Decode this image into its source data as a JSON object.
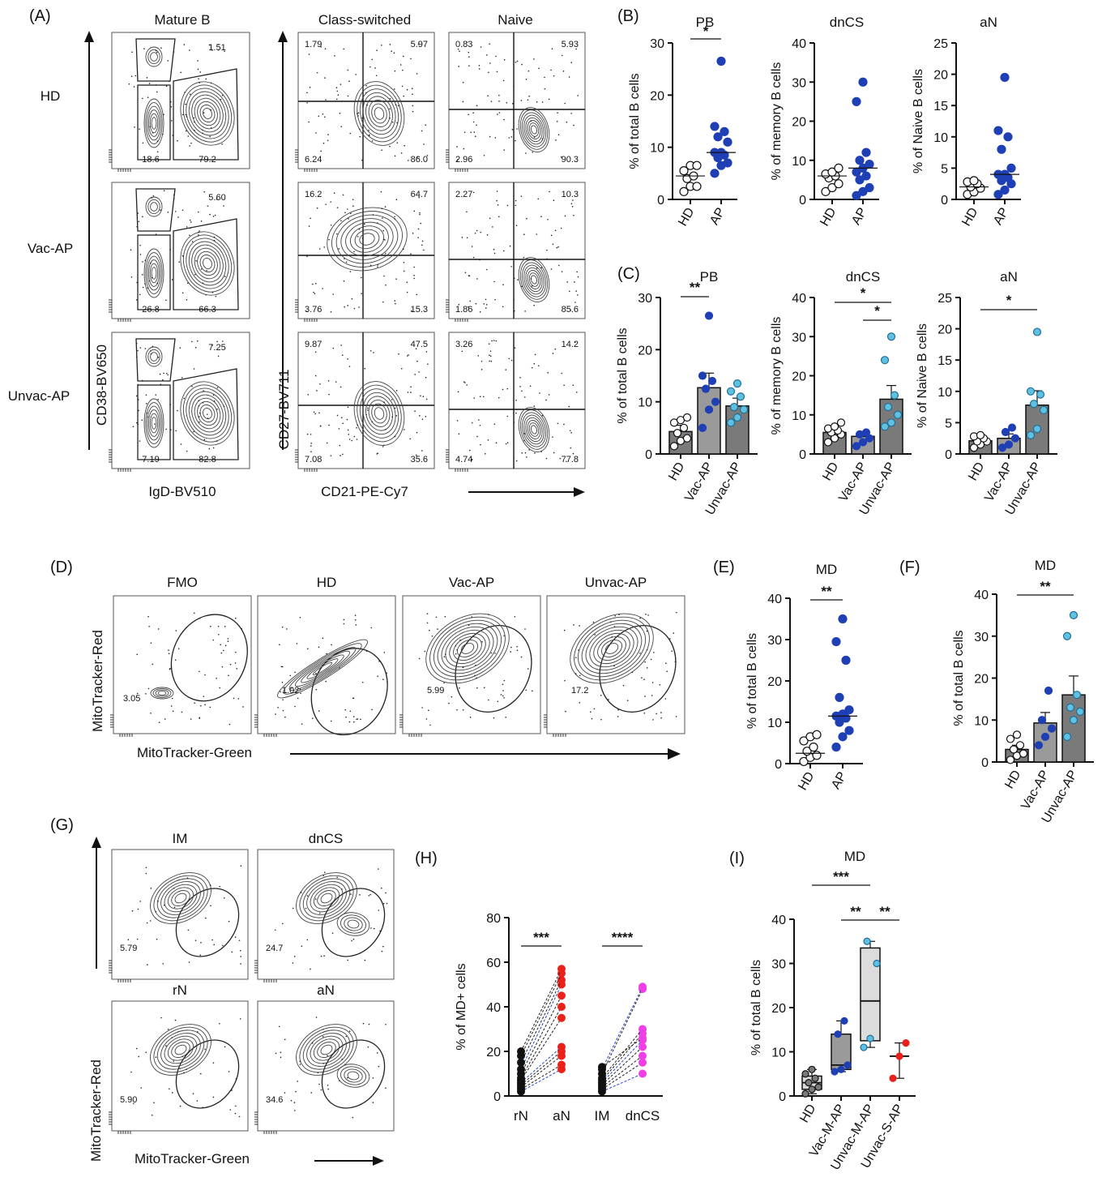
{
  "panel_labels": {
    "A": "(A)",
    "B": "(B)",
    "C": "(C)",
    "D": "(D)",
    "E": "(E)",
    "F": "(F)",
    "G": "(G)",
    "H": "(H)",
    "I": "(I)"
  },
  "panelA": {
    "col_titles": [
      "Mature B",
      "Class-switched",
      "Naive"
    ],
    "row_labels": [
      "HD",
      "Vac-AP",
      "Unvac-AP"
    ],
    "y_label_left": "CD38-BV650",
    "x_label_left": "IgD-BV510",
    "y_label_right": "CD27-BV711",
    "x_label_right": "CD21-PE-Cy7",
    "mature": [
      {
        "top": "1.51",
        "bl": "18.6",
        "br": "79.2"
      },
      {
        "top": "5.60",
        "bl": "26.8",
        "br": "66.3"
      },
      {
        "top": "7.25",
        "bl": "7.19",
        "br": "82.8"
      }
    ],
    "classsw": [
      {
        "tl": "1.79",
        "tr": "5.97",
        "bl": "6.24",
        "br": "86.0"
      },
      {
        "tl": "16.2",
        "tr": "64.7",
        "bl": "3.76",
        "br": "15.3"
      },
      {
        "tl": "9.87",
        "tr": "47.5",
        "bl": "7.08",
        "br": "35.6"
      }
    ],
    "naive": [
      {
        "tl": "0.83",
        "tr": "5.93",
        "bl": "2.96",
        "br": "90.3"
      },
      {
        "tl": "2.27",
        "tr": "10.3",
        "bl": "1.86",
        "br": "85.6"
      },
      {
        "tl": "3.26",
        "tr": "14.2",
        "bl": "4.74",
        "br": "77.8"
      }
    ]
  },
  "panelD": {
    "titles": [
      "FMO",
      "HD",
      "Vac-AP",
      "Unvac-AP"
    ],
    "values": [
      "3.05",
      "1.02",
      "5.99",
      "17.2"
    ],
    "y_label": "MitoTracker-Red",
    "x_label": "MitoTracker-Green"
  },
  "panelG": {
    "titles": [
      "IM",
      "dnCS",
      "rN",
      "aN"
    ],
    "values": [
      "5.79",
      "24.7",
      "5.90",
      "34.6"
    ],
    "y_label": "MitoTracker-Red",
    "x_label": "MitoTracker-Green"
  },
  "colors": {
    "hd_open": "#ffffff",
    "ap_blue": "#1f3fb5",
    "unvac_light": "#5fc0e0",
    "red": "#e8221b",
    "magenta": "#ef3fe6",
    "bar_fill": "#7a7a7a",
    "bar_light": "#c8c8c8",
    "black": "#111111"
  },
  "chart_data": [
    {
      "id": "B-PB",
      "type": "scatter",
      "title": "PB",
      "ylabel": "% of total B cells",
      "ylim": [
        0,
        30
      ],
      "yticks": [
        "0",
        "10",
        "20",
        "30"
      ],
      "categories": [
        "HD",
        "AP"
      ],
      "series": [
        {
          "values": [
            1.5,
            2.5,
            2.5,
            4,
            4.5,
            5.5,
            6.5,
            6.5
          ]
        },
        {
          "values": [
            5,
            6.5,
            7,
            8,
            8.5,
            9,
            9,
            11,
            12,
            13,
            14,
            26.5
          ]
        }
      ],
      "annotations": [
        {
          "text": "*",
          "from": "HD",
          "to": "AP"
        }
      ]
    },
    {
      "id": "B-dnCS",
      "type": "scatter",
      "title": "dnCS",
      "ylabel": "% of memory B cells",
      "ylim": [
        0,
        40
      ],
      "yticks": [
        "0",
        "10",
        "20",
        "30",
        "40"
      ],
      "categories": [
        "HD",
        "AP"
      ],
      "series": [
        {
          "values": [
            2,
            3,
            4,
            5.5,
            6,
            6.5,
            7,
            8
          ]
        },
        {
          "values": [
            1,
            2,
            3,
            5,
            6,
            7,
            8,
            9,
            10,
            12,
            25,
            30
          ]
        }
      ],
      "annotations": []
    },
    {
      "id": "B-aN",
      "type": "scatter",
      "title": "aN",
      "ylabel": "% of Naive B cells",
      "ylim": [
        0,
        25
      ],
      "yticks": [
        "0",
        "5",
        "10",
        "15",
        "20",
        "25"
      ],
      "categories": [
        "HD",
        "AP"
      ],
      "series": [
        {
          "values": [
            0.8,
            1.2,
            1.8,
            2,
            2.5,
            2.8,
            3
          ]
        },
        {
          "values": [
            0.8,
            1.5,
            2.5,
            3,
            3.5,
            4,
            4,
            5,
            8,
            10,
            11,
            19.5
          ]
        }
      ],
      "annotations": []
    },
    {
      "id": "C-PB",
      "type": "bar",
      "title": "PB",
      "ylabel": "% of total B cells",
      "ylim": [
        0,
        30
      ],
      "yticks": [
        "0",
        "10",
        "20",
        "30"
      ],
      "categories": [
        "HD",
        "Vac-AP",
        "Unvac-AP"
      ],
      "values": [
        4.3,
        12.7,
        9.2
      ],
      "errors": [
        1.2,
        2.8,
        1.5
      ],
      "points": [
        [
          1.5,
          2.5,
          3,
          4,
          5,
          6,
          6.5,
          7
        ],
        [
          5,
          8.5,
          10,
          12.5,
          14,
          15,
          26.5
        ],
        [
          6,
          7,
          8.5,
          9,
          11,
          12,
          13.5
        ]
      ],
      "annotations": [
        {
          "text": "**",
          "from": "HD",
          "to": "Vac-AP"
        }
      ]
    },
    {
      "id": "C-dnCS",
      "type": "bar",
      "title": "dnCS",
      "ylabel": "% of memory B cells",
      "ylim": [
        0,
        40
      ],
      "yticks": [
        "0",
        "10",
        "20",
        "30",
        "40"
      ],
      "categories": [
        "HD",
        "Vac-AP",
        "Unvac-AP"
      ],
      "values": [
        5.5,
        4.5,
        14
      ],
      "errors": [
        1,
        1.2,
        3.5
      ],
      "points": [
        [
          3,
          4,
          5,
          5.5,
          6,
          6.5,
          7,
          8
        ],
        [
          2,
          3,
          4,
          5,
          5.5
        ],
        [
          7,
          8,
          10,
          12,
          15,
          24,
          30
        ]
      ],
      "annotations": [
        {
          "text": "*",
          "from": "HD",
          "to": "Unvac-AP"
        },
        {
          "text": "*",
          "from": "Vac-AP",
          "to": "Unvac-AP"
        }
      ]
    },
    {
      "id": "C-aN",
      "type": "bar",
      "title": "aN",
      "ylabel": "% of Naive B cells",
      "ylim": [
        0,
        25
      ],
      "yticks": [
        "0",
        "5",
        "10",
        "15",
        "20",
        "25"
      ],
      "categories": [
        "HD",
        "Vac-AP",
        "Unvac-AP"
      ],
      "values": [
        2.1,
        2.5,
        7.8
      ],
      "errors": [
        0.4,
        0.7,
        2.3
      ],
      "points": [
        [
          1,
          1.5,
          2,
          2,
          2.5,
          2.8,
          3
        ],
        [
          1,
          1.5,
          2.5,
          3.5,
          4.2
        ],
        [
          3,
          4,
          7,
          8,
          9.5,
          10,
          19.5
        ]
      ],
      "annotations": [
        {
          "text": "*",
          "from": "HD",
          "to": "Unvac-AP"
        }
      ]
    },
    {
      "id": "E-MD",
      "type": "scatter",
      "title": "MD",
      "ylabel": "% of total B cells",
      "ylim": [
        0,
        40
      ],
      "yticks": [
        "0",
        "10",
        "20",
        "30",
        "40"
      ],
      "categories": [
        "HD",
        "AP"
      ],
      "series": [
        {
          "values": [
            0.5,
            1.5,
            2,
            3,
            4,
            5.5,
            6.5,
            7
          ]
        },
        {
          "values": [
            4,
            6.5,
            8,
            10,
            11,
            11.5,
            12,
            13,
            16,
            25,
            29.5,
            35
          ]
        }
      ],
      "annotations": [
        {
          "text": "**",
          "from": "HD",
          "to": "AP"
        }
      ]
    },
    {
      "id": "F-MD",
      "type": "bar",
      "title": "MD",
      "ylabel": "% of total B cells",
      "ylim": [
        0,
        40
      ],
      "yticks": [
        "0",
        "10",
        "20",
        "30",
        "40"
      ],
      "categories": [
        "HD",
        "Vac-AP",
        "Unvac-AP"
      ],
      "values": [
        3,
        9.3,
        16
      ],
      "errors": [
        1,
        2.5,
        4.5
      ],
      "points": [
        [
          0.5,
          1.5,
          2,
          3,
          4,
          5.5,
          6.5
        ],
        [
          4,
          6,
          8,
          10,
          17
        ],
        [
          6,
          10,
          12,
          13,
          16,
          30,
          35
        ]
      ],
      "annotations": [
        {
          "text": "**",
          "from": "HD",
          "to": "Unvac-AP"
        }
      ]
    },
    {
      "id": "H",
      "type": "paired-scatter",
      "ylabel": "% of MD+ cells",
      "ylim": [
        0,
        80
      ],
      "yticks": [
        "0",
        "20",
        "40",
        "60",
        "80"
      ],
      "categories": [
        "rN",
        "aN",
        "IM",
        "dnCS"
      ],
      "pairs_rN_aN": [
        [
          2,
          12
        ],
        [
          3,
          14
        ],
        [
          4,
          18
        ],
        [
          5,
          20
        ],
        [
          6,
          22
        ],
        [
          7,
          35
        ],
        [
          8,
          40
        ],
        [
          10,
          45
        ],
        [
          12,
          50
        ],
        [
          15,
          52
        ],
        [
          18,
          55
        ],
        [
          20,
          57
        ]
      ],
      "pairs_IM_dnCS": [
        [
          2,
          10
        ],
        [
          3,
          15
        ],
        [
          4,
          18
        ],
        [
          5,
          22
        ],
        [
          6,
          25
        ],
        [
          7,
          28
        ],
        [
          8,
          30
        ],
        [
          10,
          48
        ],
        [
          12,
          49
        ],
        [
          13,
          26
        ]
      ],
      "annotations": [
        {
          "text": "***",
          "from": "rN",
          "to": "aN"
        },
        {
          "text": "****",
          "from": "IM",
          "to": "dnCS"
        }
      ]
    },
    {
      "id": "I-MD",
      "type": "box",
      "title": "MD",
      "ylabel": "% of total B cells",
      "ylim": [
        0,
        40
      ],
      "yticks": [
        "0",
        "10",
        "20",
        "30",
        "40"
      ],
      "categories": [
        "HD",
        "Vac-M-AP",
        "Unvac-M-AP",
        "Unvac-S-AP"
      ],
      "boxes": [
        {
          "min": 0.5,
          "q1": 1.5,
          "med": 3,
          "q3": 4.5,
          "max": 6
        },
        {
          "min": 5.5,
          "q1": 6,
          "med": 7,
          "q3": 14,
          "max": 17
        },
        {
          "min": 11,
          "q1": 12.5,
          "med": 21.5,
          "q3": 33.5,
          "max": 35
        },
        {
          "min": 4,
          "q1": 4.5,
          "med": 9,
          "q3": 10,
          "max": 12
        }
      ],
      "points": [
        [
          0.5,
          1.5,
          2,
          3,
          4,
          5,
          6
        ],
        [
          5.5,
          6,
          7,
          14,
          17
        ],
        [
          11,
          13,
          30,
          35
        ],
        [
          4,
          9,
          12
        ]
      ],
      "annotations": [
        {
          "text": "***",
          "from": "HD",
          "to": "Unvac-M-AP"
        },
        {
          "text": "**",
          "from": "Vac-M-AP",
          "to": "Unvac-M-AP"
        },
        {
          "text": "**",
          "from": "Unvac-M-AP",
          "to": "Unvac-S-AP"
        }
      ]
    }
  ]
}
